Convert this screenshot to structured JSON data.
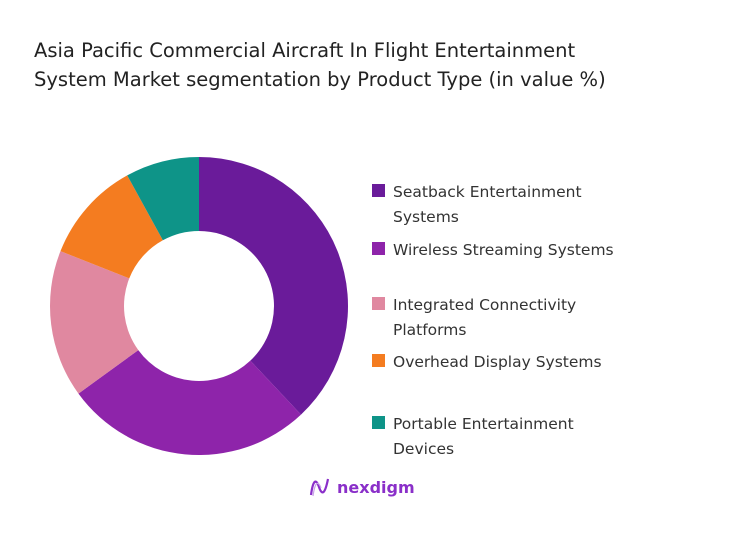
{
  "chart_data": {
    "type": "pie",
    "subtype": "donut",
    "title": "Asia Pacific Commercial Aircraft In Flight Entertainment System Market segmentation by Product Type (in value %)",
    "title_lines": [
      "Asia Pacific Commercial Aircraft In Flight Entertainment",
      "System Market segmentation by Product Type (in value %)"
    ],
    "categories": [
      "Seatback Entertainment Systems",
      "Wireless Streaming Systems",
      "Integrated Connectivity Platforms",
      "Overhead Display Systems",
      "Portable Entertainment Devices"
    ],
    "legend_lines": [
      [
        "Seatback Entertainment",
        "Systems"
      ],
      [
        "Wireless Streaming Systems"
      ],
      [
        "Integrated Connectivity",
        "Platforms"
      ],
      [
        "Overhead Display Systems"
      ],
      [
        "Portable Entertainment",
        "Devices"
      ]
    ],
    "values": [
      38,
      27,
      16,
      11,
      8
    ],
    "colors": [
      "#6a1b9a",
      "#8e24aa",
      "#e088a0",
      "#f47c20",
      "#0e9488"
    ],
    "legend_placement": "right"
  },
  "brand": {
    "name": "nexdigm",
    "color": "#8a2fc9"
  }
}
